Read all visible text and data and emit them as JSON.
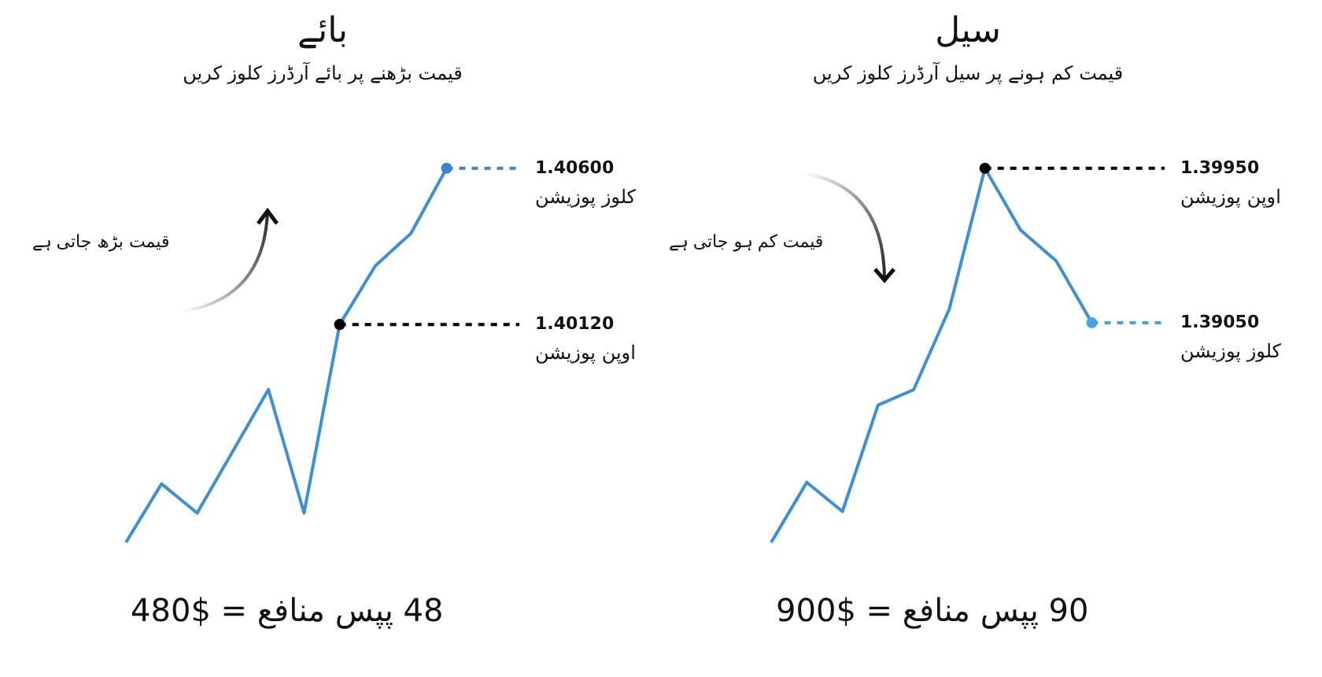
{
  "chart_data": [
    {
      "type": "line",
      "title": "بائے",
      "subtitle": "قیمت بڑھنے پر بائے آرڈرز کلوز کریں",
      "xlabel": "48 پپس منافع = $480",
      "categories": [
        null,
        null,
        null,
        null,
        null,
        null,
        null,
        null,
        null,
        null
      ],
      "series": [
        {
          "color": "#3d8fd8",
          "values": [
            1.3945,
            1.3963,
            1.3954,
            1.3973,
            1.3992,
            1.3954,
            1.4012,
            1.403,
            1.404,
            1.406
          ],
          "colors": [
            null,
            null,
            null,
            null,
            null,
            null,
            "#000000",
            null,
            null,
            "#3a84d0"
          ],
          "value_labels": [
            null,
            null,
            null,
            null,
            null,
            null,
            "1.40120",
            null,
            null,
            "1.40600"
          ]
        }
      ],
      "annotations": [
        "اوپن پوزیشن",
        "کلوز پوزیشن",
        "قیمت بڑھ جاتی ہے"
      ]
    },
    {
      "type": "line",
      "title": "سیل",
      "subtitle": "قیمت کم ہونے پر سیل آرڈرز کلوز کریں",
      "xlabel": "90 پپس منافع = $900",
      "categories": [
        null,
        null,
        null,
        null,
        null,
        null,
        null,
        null,
        null,
        null
      ],
      "series": [
        {
          "color": "#3d8fd8",
          "values": [
            1.3777,
            1.3812,
            1.3795,
            1.3857,
            1.3866,
            1.3913,
            1.3995,
            1.3959,
            1.3941,
            1.3905
          ],
          "colors": [
            null,
            null,
            null,
            null,
            null,
            null,
            "#000000",
            null,
            null,
            "#4aa3e0"
          ],
          "value_labels": [
            null,
            null,
            null,
            null,
            null,
            null,
            "1.39950",
            null,
            null,
            "1.39050"
          ]
        }
      ],
      "annotations": [
        "اوپن پوزیشن",
        "کلوز پوزیشن",
        "قیمت کم ہو جاتی ہے"
      ]
    }
  ]
}
